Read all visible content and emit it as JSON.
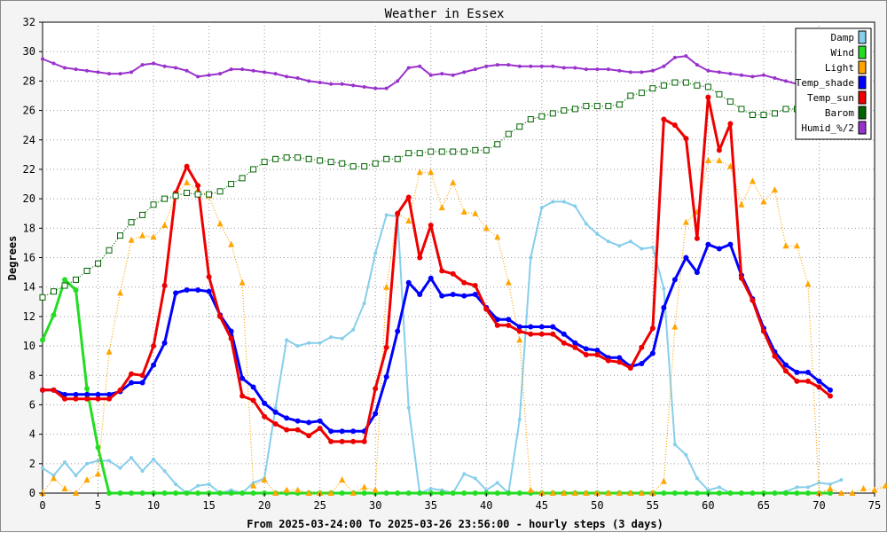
{
  "chart_data": {
    "type": "line",
    "title": "Weather in Essex",
    "ylabel": "Degrees",
    "xlabel": "From 2025-03-24:00 To 2025-03-26 23:56:00 - hourly steps (3 days)",
    "xlim": [
      0,
      75
    ],
    "ylim": [
      0,
      32
    ],
    "x_ticks": [
      0,
      5,
      10,
      15,
      20,
      25,
      30,
      35,
      40,
      45,
      50,
      55,
      60,
      65,
      70,
      75
    ],
    "y_ticks": [
      0,
      2,
      4,
      6,
      8,
      10,
      12,
      14,
      16,
      18,
      20,
      22,
      24,
      26,
      28,
      30,
      32
    ],
    "grid": true,
    "legend_position": "top-right",
    "series": [
      {
        "name": "Damp",
        "color": "#87ceeb",
        "style": "solid",
        "values": [
          1.7,
          1.2,
          2.1,
          1.2,
          2.0,
          2.2,
          2.2,
          1.7,
          2.4,
          1.5,
          2.3,
          1.5,
          0.6,
          0.0,
          0.5,
          0.6,
          0.0,
          0.2,
          0.0,
          0.7,
          1.0,
          5.8,
          10.4,
          10.0,
          10.2,
          10.2,
          10.6,
          10.5,
          11.1,
          12.9,
          16.3,
          18.9,
          18.8,
          5.8,
          0.0,
          0.3,
          0.2,
          0.0,
          1.3,
          1.0,
          0.2,
          0.7,
          0.0,
          5.0,
          16.0,
          19.4,
          19.8,
          19.8,
          19.5,
          18.3,
          17.6,
          17.1,
          16.8,
          17.1,
          16.6,
          16.7,
          13.9,
          3.3,
          2.6,
          1.0,
          0.2,
          0.4,
          0.0,
          0.0,
          0.0,
          0.0,
          0.0,
          0.1,
          0.4,
          0.4,
          0.7,
          0.6,
          0.9
        ]
      },
      {
        "name": "Wind",
        "color": "#22dd22",
        "style": "thick",
        "values": [
          10.4,
          12.1,
          14.5,
          13.8,
          7.1,
          3.1,
          0.0,
          0.0,
          0.0,
          0.0,
          0.0,
          0.0,
          0.0,
          0.0,
          0.0,
          0.0,
          0.0,
          0.0,
          0.0,
          0.0,
          0.0,
          0.0,
          0.0,
          0.0,
          0.0,
          0.0,
          0.0,
          0.0,
          0.0,
          0.0,
          0.0,
          0.0,
          0.0,
          0.0,
          0.0,
          0.0,
          0.0,
          0.0,
          0.0,
          0.0,
          0.0,
          0.0,
          0.0,
          0.0,
          0.0,
          0.0,
          0.0,
          0.0,
          0.0,
          0.0,
          0.0,
          0.0,
          0.0,
          0.0,
          0.0,
          0.0,
          0.0,
          0.0,
          0.0,
          0.0,
          0.0,
          0.0,
          0.0,
          0.0,
          0.0,
          0.0,
          0.0,
          0.0,
          0.0,
          0.0,
          0.0,
          0.0
        ]
      },
      {
        "name": "Light",
        "color": "#ffa500",
        "style": "dotted",
        "values": [
          0.0,
          1.0,
          0.3,
          0.0,
          0.9,
          1.3,
          9.6,
          13.6,
          17.2,
          17.5,
          17.4,
          18.2,
          20.3,
          21.1,
          20.6,
          20.2,
          18.3,
          16.9,
          14.3,
          0.5,
          0.9,
          0.0,
          0.2,
          0.2,
          0.0,
          0.0,
          0.0,
          0.9,
          0.0,
          0.4,
          0.2,
          14.0,
          19.0,
          18.5,
          21.8,
          21.8,
          19.4,
          21.1,
          19.1,
          19.0,
          18.0,
          17.4,
          14.3,
          10.4,
          0.2,
          0.0,
          0.0,
          0.0,
          0.0,
          0.0,
          0.0,
          0.0,
          0.0,
          0.0,
          0.0,
          0.0,
          0.8,
          11.3,
          18.4,
          19.1,
          22.6,
          22.6,
          22.2,
          19.6,
          21.2,
          19.8,
          20.6,
          16.8,
          16.8,
          14.2,
          0.0,
          0.3,
          0.0,
          0.0,
          0.3,
          0.2,
          0.5
        ]
      },
      {
        "name": "Temp_shade",
        "color": "#0000ff",
        "style": "thick",
        "values": [
          7.0,
          7.0,
          6.7,
          6.7,
          6.7,
          6.7,
          6.7,
          6.9,
          7.5,
          7.5,
          8.7,
          10.2,
          13.6,
          13.8,
          13.8,
          13.7,
          12.1,
          11.0,
          7.8,
          7.2,
          6.1,
          5.5,
          5.1,
          4.9,
          4.8,
          4.9,
          4.2,
          4.2,
          4.2,
          4.2,
          5.4,
          7.9,
          11.0,
          14.3,
          13.5,
          14.6,
          13.4,
          13.5,
          13.4,
          13.5,
          12.6,
          11.8,
          11.8,
          11.3,
          11.3,
          11.3,
          11.3,
          10.8,
          10.2,
          9.8,
          9.7,
          9.2,
          9.2,
          8.6,
          8.8,
          9.5,
          12.6,
          14.5,
          16.0,
          15.0,
          16.9,
          16.6,
          16.9,
          14.8,
          13.2,
          11.2,
          9.6,
          8.7,
          8.2,
          8.2,
          7.6,
          7.0
        ]
      },
      {
        "name": "Temp_sun",
        "color": "#ee0000",
        "style": "thick",
        "values": [
          7.0,
          7.0,
          6.4,
          6.4,
          6.4,
          6.4,
          6.4,
          7.0,
          8.1,
          8.0,
          10.0,
          14.1,
          20.4,
          22.2,
          20.9,
          14.7,
          12.0,
          10.5,
          6.6,
          6.3,
          5.2,
          4.7,
          4.3,
          4.3,
          3.9,
          4.4,
          3.5,
          3.5,
          3.5,
          3.5,
          7.1,
          9.9,
          19.0,
          20.1,
          16.0,
          18.2,
          15.1,
          14.9,
          14.3,
          14.1,
          12.5,
          11.4,
          11.4,
          11.0,
          10.8,
          10.8,
          10.8,
          10.2,
          9.9,
          9.4,
          9.4,
          9.0,
          8.9,
          8.5,
          9.9,
          11.2,
          25.4,
          25.0,
          24.1,
          17.3,
          26.9,
          23.3,
          25.1,
          14.6,
          13.1,
          11.0,
          9.3,
          8.3,
          7.6,
          7.6,
          7.2,
          6.6
        ]
      },
      {
        "name": "Barom",
        "color": "#006400",
        "style": "dotted",
        "values": [
          13.3,
          13.7,
          14.1,
          14.5,
          15.1,
          15.6,
          16.5,
          17.5,
          18.4,
          18.9,
          19.6,
          20.0,
          20.2,
          20.4,
          20.3,
          20.3,
          20.5,
          21.0,
          21.4,
          22.0,
          22.5,
          22.7,
          22.8,
          22.8,
          22.7,
          22.6,
          22.5,
          22.4,
          22.2,
          22.2,
          22.4,
          22.7,
          22.7,
          23.1,
          23.1,
          23.2,
          23.2,
          23.2,
          23.2,
          23.3,
          23.3,
          23.7,
          24.4,
          24.9,
          25.4,
          25.6,
          25.8,
          26.0,
          26.1,
          26.3,
          26.3,
          26.3,
          26.4,
          27.0,
          27.2,
          27.5,
          27.7,
          27.9,
          27.9,
          27.7,
          27.6,
          27.1,
          26.6,
          26.1,
          25.7,
          25.7,
          25.8,
          26.1,
          26.1,
          26.1,
          26.1,
          26.1
        ]
      },
      {
        "name": "Humid_%/2",
        "color": "#9932cc",
        "style": "solid",
        "values": [
          29.5,
          29.2,
          28.9,
          28.8,
          28.7,
          28.6,
          28.5,
          28.5,
          28.6,
          29.1,
          29.2,
          29.0,
          28.9,
          28.7,
          28.3,
          28.4,
          28.5,
          28.8,
          28.8,
          28.7,
          28.6,
          28.5,
          28.3,
          28.2,
          28.0,
          27.9,
          27.8,
          27.8,
          27.7,
          27.6,
          27.5,
          27.5,
          28.0,
          28.9,
          29.0,
          28.4,
          28.5,
          28.4,
          28.6,
          28.8,
          29.0,
          29.1,
          29.1,
          29.0,
          29.0,
          29.0,
          29.0,
          28.9,
          28.9,
          28.8,
          28.8,
          28.8,
          28.7,
          28.6,
          28.6,
          28.7,
          29.0,
          29.6,
          29.7,
          29.1,
          28.7,
          28.6,
          28.5,
          28.4,
          28.3,
          28.4,
          28.2,
          28.0,
          27.8,
          27.7,
          27.6,
          27.5
        ]
      }
    ]
  }
}
